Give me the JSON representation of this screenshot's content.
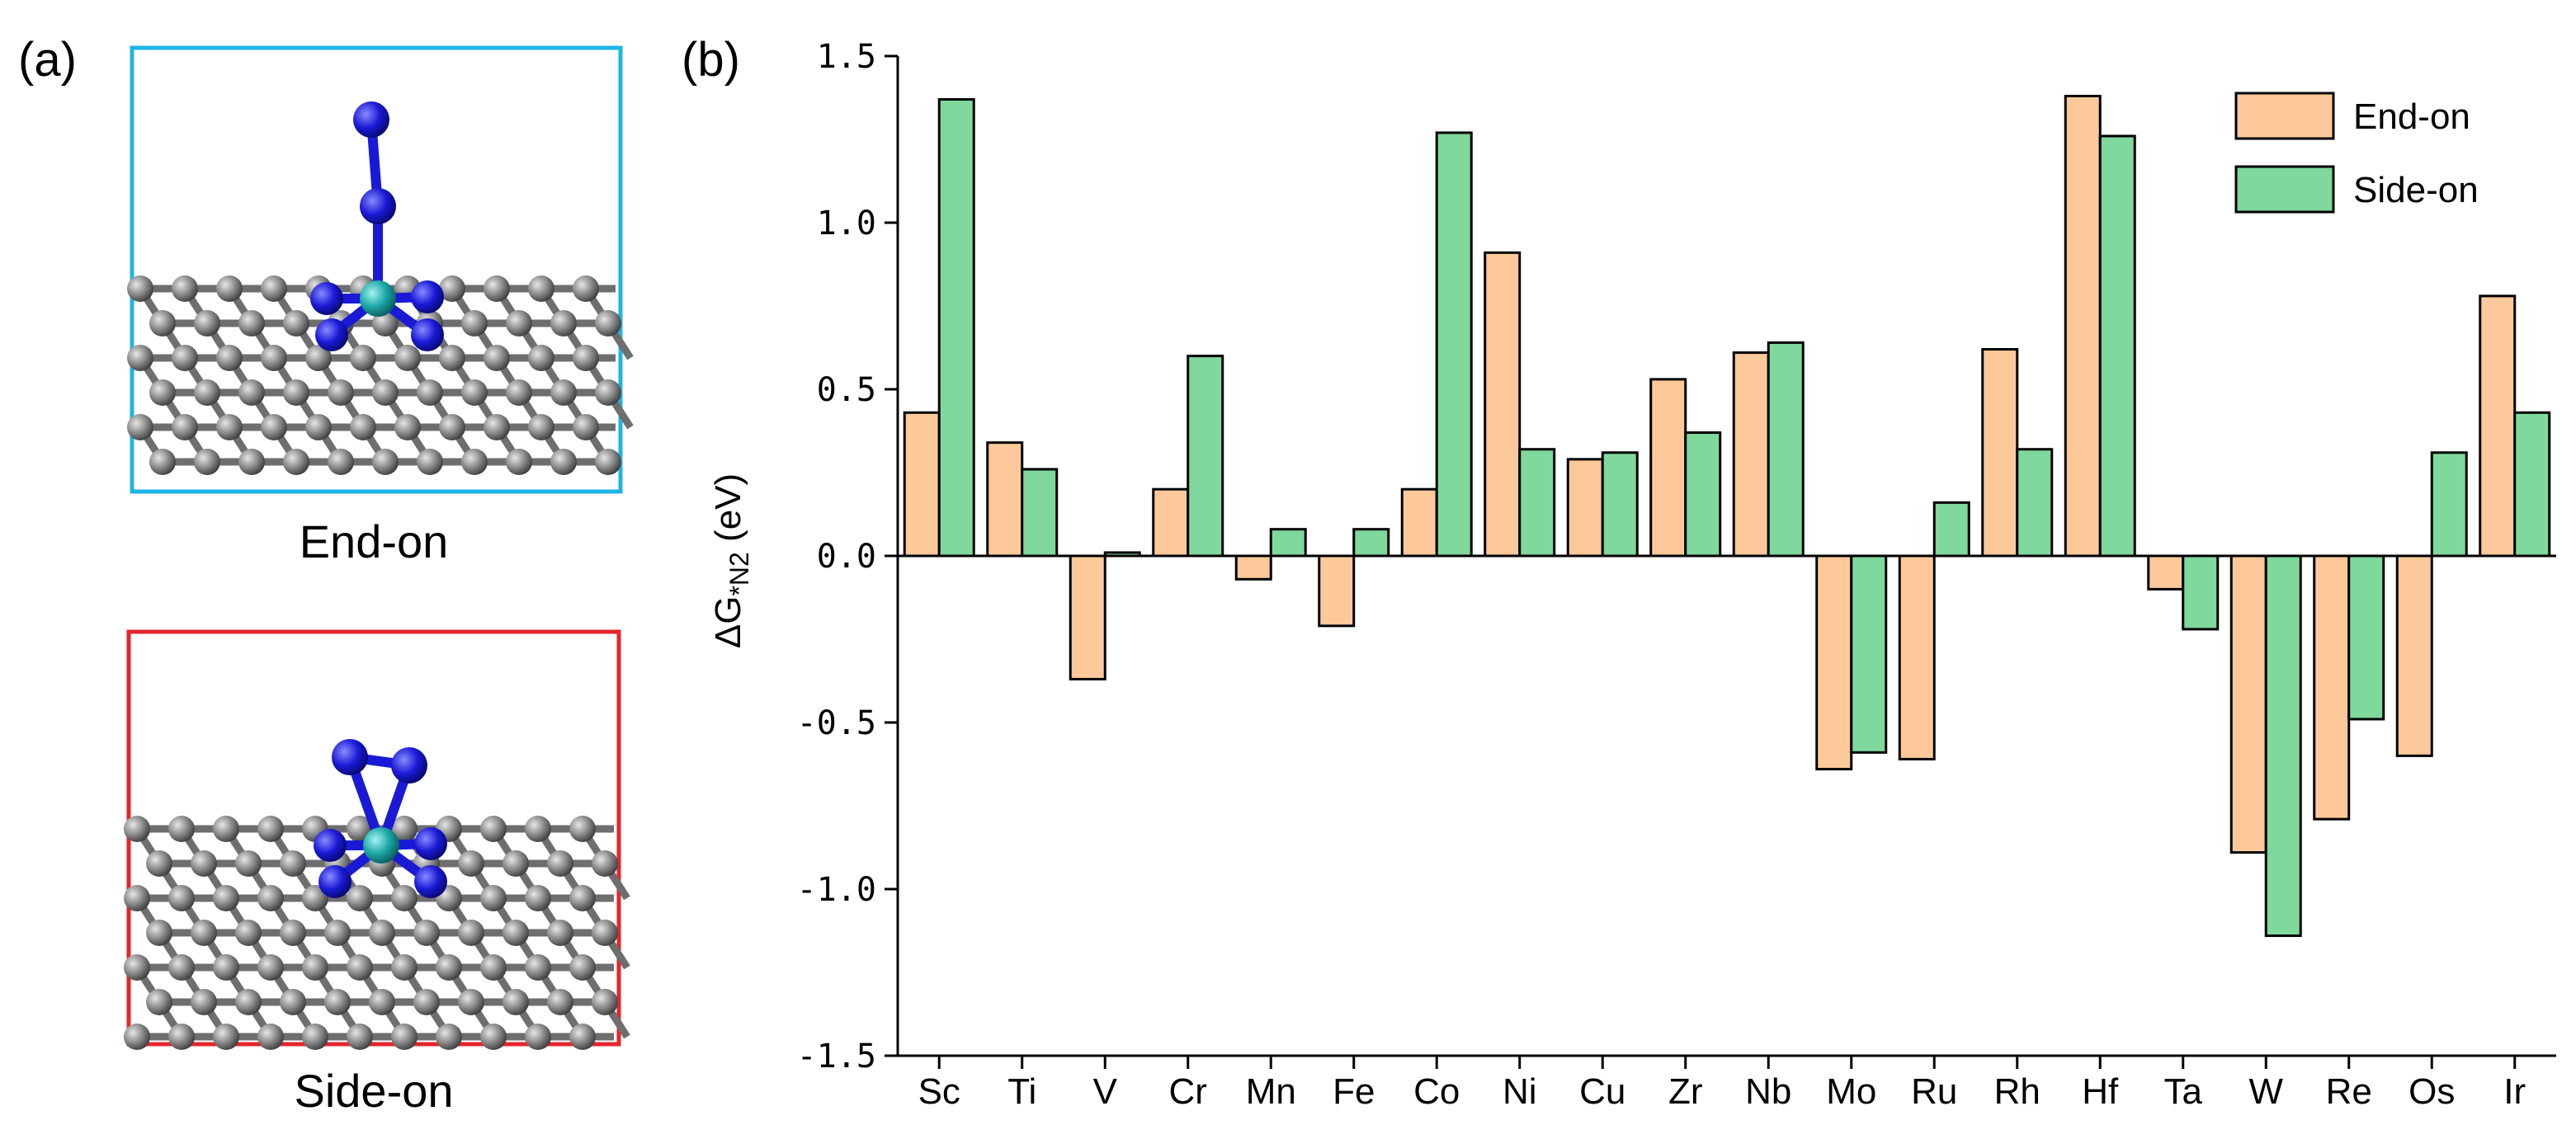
{
  "panel_a": {
    "label": "(a)",
    "end_on_caption": "End-on",
    "side_on_caption": "Side-on",
    "end_on_frame_color": "#1fb4e6",
    "side_on_frame_color": "#e3262c",
    "atom_colors": {
      "carbon": "#7f7f7f",
      "nitrogen": "#1a1ad6",
      "metal": "#1aa6a6"
    }
  },
  "chart_data": {
    "type": "bar",
    "panel_label": "(b)",
    "title": "",
    "xlabel": "",
    "ylabel": "ΔG*N2 (eV)",
    "ylabel_parts": {
      "main": "ΔG",
      "sub": "*N2",
      "unit": " (eV)"
    },
    "ylim": [
      -1.5,
      1.5
    ],
    "yticks": [
      "1.5",
      "1.0",
      "0.5",
      "0.0",
      "-0.5",
      "-1.0",
      "-1.5"
    ],
    "ytick_values": [
      1.5,
      1.0,
      0.5,
      0.0,
      -0.5,
      -1.0,
      -1.5
    ],
    "grid": false,
    "legend_position": "top-right",
    "categories": [
      "Sc",
      "Ti",
      "V",
      "Cr",
      "Mn",
      "Fe",
      "Co",
      "Ni",
      "Cu",
      "Zr",
      "Nb",
      "Mo",
      "Ru",
      "Rh",
      "Hf",
      "Ta",
      "W",
      "Re",
      "Os",
      "Ir"
    ],
    "series": [
      {
        "name": "End-on",
        "color": "#fdc99a",
        "values": [
          0.43,
          0.34,
          -0.37,
          0.2,
          -0.07,
          -0.21,
          0.2,
          0.91,
          0.29,
          0.53,
          0.61,
          -0.64,
          -0.61,
          0.62,
          1.38,
          -0.1,
          -0.89,
          -0.79,
          -0.6,
          0.78
        ]
      },
      {
        "name": "Side-on",
        "color": "#7fd89c",
        "values": [
          1.37,
          0.26,
          0.01,
          0.6,
          0.08,
          0.08,
          1.27,
          0.32,
          0.31,
          0.37,
          0.64,
          -0.59,
          0.16,
          0.32,
          1.26,
          -0.22,
          -1.14,
          -0.49,
          0.31,
          0.43
        ]
      }
    ]
  }
}
